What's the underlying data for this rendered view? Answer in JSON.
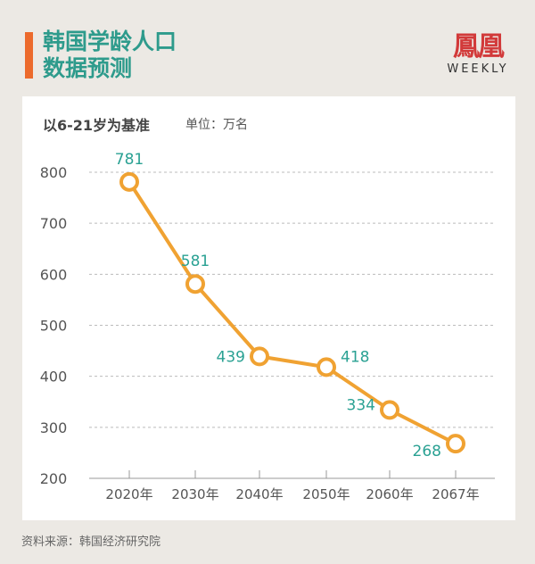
{
  "title_line1": "韩国学龄人口",
  "title_line2": "数据预测",
  "logo": {
    "cn": "鳳凰",
    "en": "WEEKLY"
  },
  "subtitle": "以6-21岁为基准",
  "unit": "单位：万名",
  "source": "资料来源：韩国经济研究院",
  "colors": {
    "line": "#f0a232",
    "label": "#2aa193",
    "title": "#2e9b8c",
    "accent": "#ec6a2c"
  },
  "chart_data": {
    "type": "line",
    "title": "韩国学龄人口数据预测",
    "xlabel": "",
    "ylabel": "单位：万名",
    "categories": [
      "2020年",
      "2030年",
      "2040年",
      "2050年",
      "2060年",
      "2067年"
    ],
    "values": [
      781,
      581,
      439,
      418,
      334,
      268
    ],
    "ylim": [
      200,
      800
    ],
    "yticks": [
      "200",
      "300",
      "400",
      "500",
      "600",
      "700",
      "800"
    ],
    "grid": true,
    "legend": "none"
  }
}
